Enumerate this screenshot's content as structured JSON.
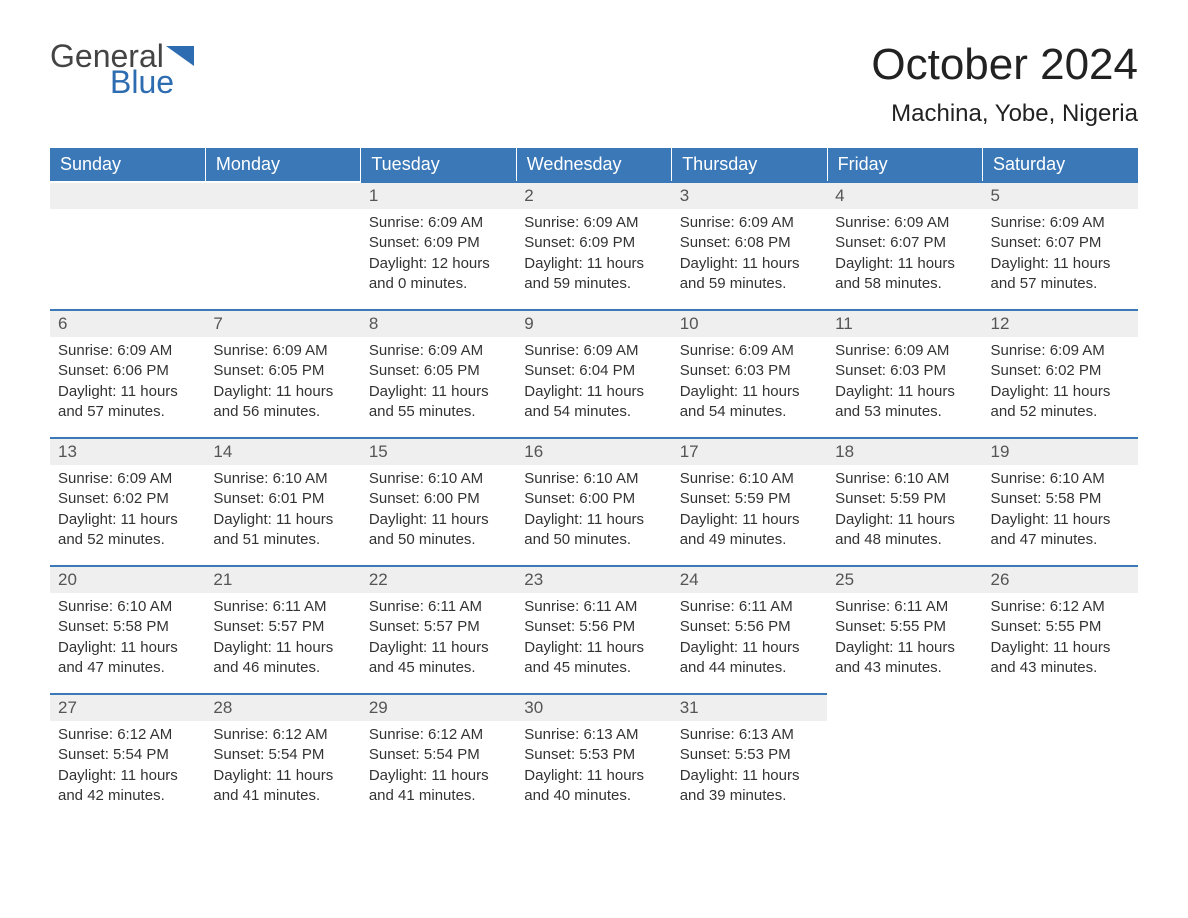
{
  "logo": {
    "text1": "General",
    "text2": "Blue",
    "flag_color": "#2d6cb0"
  },
  "title": "October 2024",
  "location": "Machina, Yobe, Nigeria",
  "colors": {
    "header_bg": "#3b78b8",
    "header_text": "#ffffff",
    "daynum_bg": "#efefef",
    "cell_border": "#3b78b8",
    "body_text": "#333333",
    "background": "#ffffff"
  },
  "typography": {
    "title_fontsize": 44,
    "location_fontsize": 24,
    "weekday_fontsize": 18,
    "daynum_fontsize": 17,
    "body_fontsize": 15
  },
  "weekdays": [
    "Sunday",
    "Monday",
    "Tuesday",
    "Wednesday",
    "Thursday",
    "Friday",
    "Saturday"
  ],
  "weeks": [
    [
      {
        "day": "",
        "lines": [
          "",
          "",
          "",
          ""
        ]
      },
      {
        "day": "",
        "lines": [
          "",
          "",
          "",
          ""
        ]
      },
      {
        "day": "1",
        "lines": [
          "Sunrise: 6:09 AM",
          "Sunset: 6:09 PM",
          "Daylight: 12 hours",
          "and 0 minutes."
        ]
      },
      {
        "day": "2",
        "lines": [
          "Sunrise: 6:09 AM",
          "Sunset: 6:09 PM",
          "Daylight: 11 hours",
          "and 59 minutes."
        ]
      },
      {
        "day": "3",
        "lines": [
          "Sunrise: 6:09 AM",
          "Sunset: 6:08 PM",
          "Daylight: 11 hours",
          "and 59 minutes."
        ]
      },
      {
        "day": "4",
        "lines": [
          "Sunrise: 6:09 AM",
          "Sunset: 6:07 PM",
          "Daylight: 11 hours",
          "and 58 minutes."
        ]
      },
      {
        "day": "5",
        "lines": [
          "Sunrise: 6:09 AM",
          "Sunset: 6:07 PM",
          "Daylight: 11 hours",
          "and 57 minutes."
        ]
      }
    ],
    [
      {
        "day": "6",
        "lines": [
          "Sunrise: 6:09 AM",
          "Sunset: 6:06 PM",
          "Daylight: 11 hours",
          "and 57 minutes."
        ]
      },
      {
        "day": "7",
        "lines": [
          "Sunrise: 6:09 AM",
          "Sunset: 6:05 PM",
          "Daylight: 11 hours",
          "and 56 minutes."
        ]
      },
      {
        "day": "8",
        "lines": [
          "Sunrise: 6:09 AM",
          "Sunset: 6:05 PM",
          "Daylight: 11 hours",
          "and 55 minutes."
        ]
      },
      {
        "day": "9",
        "lines": [
          "Sunrise: 6:09 AM",
          "Sunset: 6:04 PM",
          "Daylight: 11 hours",
          "and 54 minutes."
        ]
      },
      {
        "day": "10",
        "lines": [
          "Sunrise: 6:09 AM",
          "Sunset: 6:03 PM",
          "Daylight: 11 hours",
          "and 54 minutes."
        ]
      },
      {
        "day": "11",
        "lines": [
          "Sunrise: 6:09 AM",
          "Sunset: 6:03 PM",
          "Daylight: 11 hours",
          "and 53 minutes."
        ]
      },
      {
        "day": "12",
        "lines": [
          "Sunrise: 6:09 AM",
          "Sunset: 6:02 PM",
          "Daylight: 11 hours",
          "and 52 minutes."
        ]
      }
    ],
    [
      {
        "day": "13",
        "lines": [
          "Sunrise: 6:09 AM",
          "Sunset: 6:02 PM",
          "Daylight: 11 hours",
          "and 52 minutes."
        ]
      },
      {
        "day": "14",
        "lines": [
          "Sunrise: 6:10 AM",
          "Sunset: 6:01 PM",
          "Daylight: 11 hours",
          "and 51 minutes."
        ]
      },
      {
        "day": "15",
        "lines": [
          "Sunrise: 6:10 AM",
          "Sunset: 6:00 PM",
          "Daylight: 11 hours",
          "and 50 minutes."
        ]
      },
      {
        "day": "16",
        "lines": [
          "Sunrise: 6:10 AM",
          "Sunset: 6:00 PM",
          "Daylight: 11 hours",
          "and 50 minutes."
        ]
      },
      {
        "day": "17",
        "lines": [
          "Sunrise: 6:10 AM",
          "Sunset: 5:59 PM",
          "Daylight: 11 hours",
          "and 49 minutes."
        ]
      },
      {
        "day": "18",
        "lines": [
          "Sunrise: 6:10 AM",
          "Sunset: 5:59 PM",
          "Daylight: 11 hours",
          "and 48 minutes."
        ]
      },
      {
        "day": "19",
        "lines": [
          "Sunrise: 6:10 AM",
          "Sunset: 5:58 PM",
          "Daylight: 11 hours",
          "and 47 minutes."
        ]
      }
    ],
    [
      {
        "day": "20",
        "lines": [
          "Sunrise: 6:10 AM",
          "Sunset: 5:58 PM",
          "Daylight: 11 hours",
          "and 47 minutes."
        ]
      },
      {
        "day": "21",
        "lines": [
          "Sunrise: 6:11 AM",
          "Sunset: 5:57 PM",
          "Daylight: 11 hours",
          "and 46 minutes."
        ]
      },
      {
        "day": "22",
        "lines": [
          "Sunrise: 6:11 AM",
          "Sunset: 5:57 PM",
          "Daylight: 11 hours",
          "and 45 minutes."
        ]
      },
      {
        "day": "23",
        "lines": [
          "Sunrise: 6:11 AM",
          "Sunset: 5:56 PM",
          "Daylight: 11 hours",
          "and 45 minutes."
        ]
      },
      {
        "day": "24",
        "lines": [
          "Sunrise: 6:11 AM",
          "Sunset: 5:56 PM",
          "Daylight: 11 hours",
          "and 44 minutes."
        ]
      },
      {
        "day": "25",
        "lines": [
          "Sunrise: 6:11 AM",
          "Sunset: 5:55 PM",
          "Daylight: 11 hours",
          "and 43 minutes."
        ]
      },
      {
        "day": "26",
        "lines": [
          "Sunrise: 6:12 AM",
          "Sunset: 5:55 PM",
          "Daylight: 11 hours",
          "and 43 minutes."
        ]
      }
    ],
    [
      {
        "day": "27",
        "lines": [
          "Sunrise: 6:12 AM",
          "Sunset: 5:54 PM",
          "Daylight: 11 hours",
          "and 42 minutes."
        ]
      },
      {
        "day": "28",
        "lines": [
          "Sunrise: 6:12 AM",
          "Sunset: 5:54 PM",
          "Daylight: 11 hours",
          "and 41 minutes."
        ]
      },
      {
        "day": "29",
        "lines": [
          "Sunrise: 6:12 AM",
          "Sunset: 5:54 PM",
          "Daylight: 11 hours",
          "and 41 minutes."
        ]
      },
      {
        "day": "30",
        "lines": [
          "Sunrise: 6:13 AM",
          "Sunset: 5:53 PM",
          "Daylight: 11 hours",
          "and 40 minutes."
        ]
      },
      {
        "day": "31",
        "lines": [
          "Sunrise: 6:13 AM",
          "Sunset: 5:53 PM",
          "Daylight: 11 hours",
          "and 39 minutes."
        ]
      },
      {
        "day": "",
        "lines": [
          "",
          "",
          "",
          ""
        ]
      },
      {
        "day": "",
        "lines": [
          "",
          "",
          "",
          ""
        ]
      }
    ]
  ]
}
